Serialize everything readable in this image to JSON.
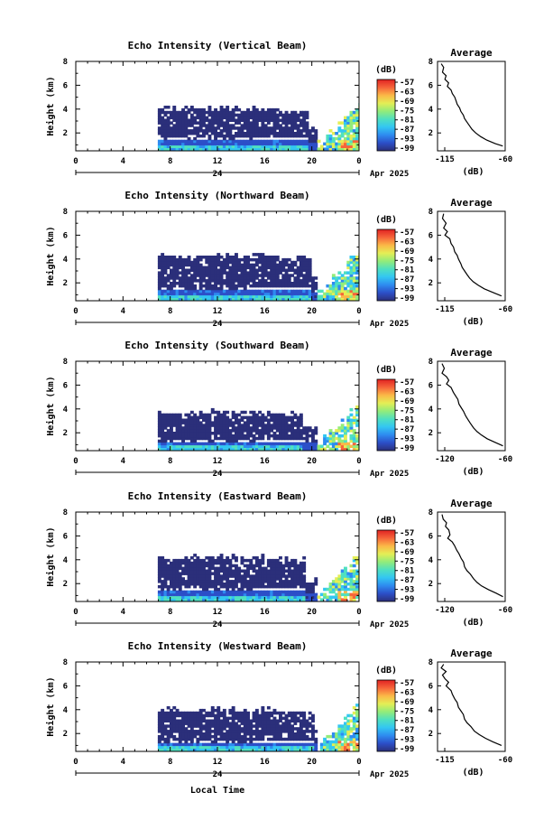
{
  "colors": {
    "colorbar_low_to_high": [
      "#2b2f7a",
      "#2c4fc8",
      "#2e8bf0",
      "#33c6f2",
      "#4fe0c0",
      "#93ec7a",
      "#e4ee55",
      "#fbb847",
      "#f6643a",
      "#e02222"
    ],
    "background": "#ffffff",
    "lines": "#000000"
  },
  "common": {
    "x_ticks": [
      "0",
      "4",
      "8",
      "12",
      "16",
      "20",
      "0"
    ],
    "y_ticks": [
      "2",
      "4",
      "6",
      "8"
    ],
    "date_day": "24",
    "date_month_year": "Apr 2025",
    "ylabel": "Height (km)",
    "unit": "(dB)",
    "colorbar_ticks": [
      "-57",
      "-63",
      "-69",
      "-75",
      "-81",
      "-87",
      "-93",
      "-99"
    ],
    "avg_title": "Average",
    "avg_xlabel": "(dB)",
    "xlabel": "Local Time"
  },
  "chart_data": [
    {
      "type": "heatmap",
      "title": "Echo Intensity (Vertical Beam)",
      "beam": "vertical",
      "xlim": [
        0,
        24
      ],
      "ylim": [
        0.5,
        8
      ],
      "colorbar_range": [
        -99,
        -57
      ],
      "profile": {
        "xlim": [
          -115,
          -60
        ],
        "ticks": [
          "-115",
          "-60"
        ],
        "points": [
          [
            -112,
            7.8
          ],
          [
            -110,
            7.5
          ],
          [
            -111,
            7.1
          ],
          [
            -108,
            6.8
          ],
          [
            -109,
            6.5
          ],
          [
            -106,
            6.2
          ],
          [
            -107,
            5.9
          ],
          [
            -104,
            5.6
          ],
          [
            -103,
            5.3
          ],
          [
            -101,
            5.0
          ],
          [
            -100,
            4.7
          ],
          [
            -99,
            4.4
          ],
          [
            -97,
            4.1
          ],
          [
            -96,
            3.8
          ],
          [
            -94,
            3.5
          ],
          [
            -93,
            3.2
          ],
          [
            -91,
            2.9
          ],
          [
            -89,
            2.6
          ],
          [
            -87,
            2.3
          ],
          [
            -84,
            2.0
          ],
          [
            -80,
            1.7
          ],
          [
            -75,
            1.4
          ],
          [
            -68,
            1.1
          ],
          [
            -62,
            0.9
          ]
        ]
      }
    },
    {
      "type": "heatmap",
      "title": "Echo Intensity (Northward Beam)",
      "beam": "northward",
      "xlim": [
        0,
        24
      ],
      "ylim": [
        0.5,
        8
      ],
      "colorbar_range": [
        -99,
        -57
      ],
      "profile": {
        "xlim": [
          -115,
          -60
        ],
        "ticks": [
          "-115",
          "-60"
        ],
        "points": [
          [
            -110,
            7.8
          ],
          [
            -111,
            7.4
          ],
          [
            -108,
            7.0
          ],
          [
            -110,
            6.6
          ],
          [
            -107,
            6.3
          ],
          [
            -109,
            6.0
          ],
          [
            -105,
            5.7
          ],
          [
            -104,
            5.3
          ],
          [
            -102,
            5.0
          ],
          [
            -101,
            4.6
          ],
          [
            -99,
            4.3
          ],
          [
            -98,
            4.0
          ],
          [
            -96,
            3.6
          ],
          [
            -95,
            3.3
          ],
          [
            -93,
            3.0
          ],
          [
            -91,
            2.7
          ],
          [
            -89,
            2.4
          ],
          [
            -86,
            2.1
          ],
          [
            -82,
            1.8
          ],
          [
            -77,
            1.5
          ],
          [
            -70,
            1.2
          ],
          [
            -63,
            0.9
          ]
        ]
      }
    },
    {
      "type": "heatmap",
      "title": "Echo Intensity (Southward Beam)",
      "beam": "southward",
      "xlim": [
        0,
        24
      ],
      "ylim": [
        0.5,
        8
      ],
      "colorbar_range": [
        -99,
        -57
      ],
      "profile": {
        "xlim": [
          -120,
          -60
        ],
        "ticks": [
          "-120",
          "-60"
        ],
        "points": [
          [
            -116,
            7.8
          ],
          [
            -114,
            7.4
          ],
          [
            -116,
            7.0
          ],
          [
            -112,
            6.7
          ],
          [
            -110,
            6.4
          ],
          [
            -112,
            6.1
          ],
          [
            -108,
            5.8
          ],
          [
            -106,
            5.4
          ],
          [
            -104,
            5.1
          ],
          [
            -102,
            4.8
          ],
          [
            -101,
            4.4
          ],
          [
            -99,
            4.1
          ],
          [
            -97,
            3.8
          ],
          [
            -95,
            3.4
          ],
          [
            -93,
            3.1
          ],
          [
            -91,
            2.8
          ],
          [
            -88,
            2.4
          ],
          [
            -85,
            2.1
          ],
          [
            -81,
            1.8
          ],
          [
            -76,
            1.5
          ],
          [
            -69,
            1.2
          ],
          [
            -62,
            0.9
          ]
        ]
      }
    },
    {
      "type": "heatmap",
      "title": "Echo Intensity (Eastward Beam)",
      "beam": "eastward",
      "xlim": [
        0,
        24
      ],
      "ylim": [
        0.5,
        8
      ],
      "colorbar_range": [
        -99,
        -57
      ],
      "profile": {
        "xlim": [
          -120,
          -60
        ],
        "ticks": [
          "-120",
          "-60"
        ],
        "points": [
          [
            -116,
            7.8
          ],
          [
            -115,
            7.4
          ],
          [
            -112,
            7.1
          ],
          [
            -113,
            6.8
          ],
          [
            -110,
            6.5
          ],
          [
            -109,
            6.1
          ],
          [
            -111,
            5.8
          ],
          [
            -107,
            5.5
          ],
          [
            -105,
            5.2
          ],
          [
            -103,
            4.8
          ],
          [
            -101,
            4.5
          ],
          [
            -99,
            4.1
          ],
          [
            -97,
            3.8
          ],
          [
            -96,
            3.4
          ],
          [
            -94,
            3.1
          ],
          [
            -91,
            2.8
          ],
          [
            -88,
            2.4
          ],
          [
            -85,
            2.1
          ],
          [
            -81,
            1.8
          ],
          [
            -75,
            1.5
          ],
          [
            -68,
            1.2
          ],
          [
            -62,
            0.9
          ]
        ]
      }
    },
    {
      "type": "heatmap",
      "title": "Echo Intensity (Westward Beam)",
      "beam": "westward",
      "xlim": [
        0,
        24
      ],
      "ylim": [
        0.5,
        8
      ],
      "colorbar_range": [
        -99,
        -57
      ],
      "profile": {
        "xlim": [
          -115,
          -60
        ],
        "ticks": [
          "-115",
          "-60"
        ],
        "points": [
          [
            -110,
            7.8
          ],
          [
            -112,
            7.5
          ],
          [
            -108,
            7.2
          ],
          [
            -111,
            6.9
          ],
          [
            -109,
            6.6
          ],
          [
            -106,
            6.3
          ],
          [
            -108,
            6.0
          ],
          [
            -104,
            5.6
          ],
          [
            -103,
            5.3
          ],
          [
            -101,
            4.9
          ],
          [
            -99,
            4.6
          ],
          [
            -98,
            4.2
          ],
          [
            -96,
            3.9
          ],
          [
            -94,
            3.6
          ],
          [
            -93,
            3.2
          ],
          [
            -91,
            2.9
          ],
          [
            -88,
            2.6
          ],
          [
            -85,
            2.2
          ],
          [
            -81,
            1.9
          ],
          [
            -76,
            1.6
          ],
          [
            -70,
            1.3
          ],
          [
            -63,
            1.0
          ]
        ]
      }
    }
  ]
}
